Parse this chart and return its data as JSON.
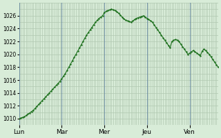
{
  "background_color": "#d8ecd8",
  "plot_bg_color": "#d8ecd8",
  "line_color": "#1a6e1a",
  "grid_color": "#b0c8b0",
  "vline_color": "#7090a0",
  "ylabel_color": "#000000",
  "ylim": [
    1009,
    1028
  ],
  "yticks": [
    1010,
    1012,
    1014,
    1016,
    1018,
    1020,
    1022,
    1024,
    1026
  ],
  "day_labels": [
    "Lun",
    "Mar",
    "Mer",
    "Jeu",
    "Ven"
  ],
  "day_positions": [
    0,
    24,
    48,
    72,
    96
  ],
  "vline_positions": [
    0,
    24,
    48,
    72,
    96
  ],
  "y": [
    1010.0,
    1010.1,
    1010.2,
    1010.3,
    1010.5,
    1010.7,
    1010.9,
    1011.1,
    1011.3,
    1011.6,
    1011.9,
    1012.2,
    1012.5,
    1012.8,
    1013.1,
    1013.4,
    1013.7,
    1014.0,
    1014.3,
    1014.6,
    1014.9,
    1015.2,
    1015.5,
    1015.8,
    1016.2,
    1016.6,
    1017.0,
    1017.5,
    1018.0,
    1018.5,
    1019.0,
    1019.5,
    1020.0,
    1020.5,
    1021.0,
    1021.5,
    1022.0,
    1022.5,
    1023.0,
    1023.4,
    1023.8,
    1024.2,
    1024.6,
    1025.0,
    1025.3,
    1025.6,
    1025.8,
    1026.0,
    1026.5,
    1026.7,
    1026.8,
    1026.9,
    1027.0,
    1026.9,
    1026.8,
    1026.6,
    1026.4,
    1026.1,
    1025.8,
    1025.5,
    1025.3,
    1025.2,
    1025.1,
    1025.0,
    1025.2,
    1025.4,
    1025.6,
    1025.7,
    1025.8,
    1025.9,
    1026.0,
    1025.8,
    1025.6,
    1025.4,
    1025.2,
    1025.0,
    1024.6,
    1024.2,
    1023.8,
    1023.4,
    1023.0,
    1022.6,
    1022.2,
    1021.8,
    1021.4,
    1021.0,
    1022.0,
    1022.2,
    1022.3,
    1022.2,
    1022.0,
    1021.6,
    1021.2,
    1020.8,
    1020.4,
    1020.0,
    1020.2,
    1020.4,
    1020.6,
    1020.4,
    1020.2,
    1020.0,
    1019.8,
    1020.5,
    1020.8,
    1020.6,
    1020.3,
    1020.0,
    1019.6,
    1019.2,
    1018.8,
    1018.4,
    1018.0
  ]
}
